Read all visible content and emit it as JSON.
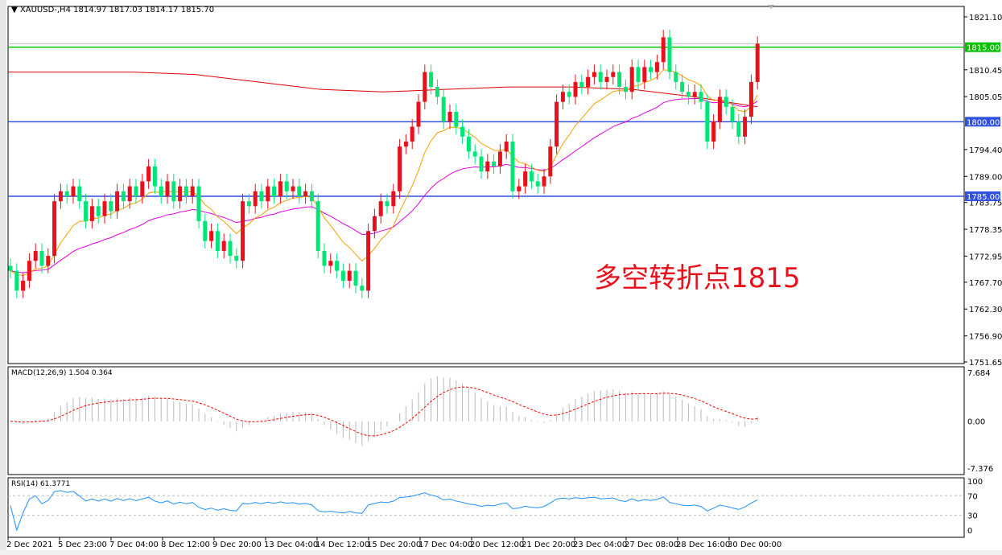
{
  "chart_data": {
    "type": "candlestick",
    "symbol_header": "XAUUSD-,H4",
    "ohlc_header": "1814.97 1817.03 1814.17 1815.70",
    "closes": [
      1770,
      1766,
      1768,
      1772,
      1774,
      1771,
      1773,
      1784,
      1786,
      1785,
      1787,
      1784,
      1780,
      1783,
      1781,
      1784,
      1782,
      1786,
      1784,
      1787,
      1785,
      1788,
      1791,
      1787,
      1785,
      1788,
      1784,
      1787,
      1785,
      1787,
      1780,
      1776,
      1778,
      1774,
      1776,
      1773,
      1772,
      1784,
      1783,
      1786,
      1784,
      1787,
      1785,
      1788,
      1786,
      1787,
      1785,
      1786,
      1784,
      1774,
      1771,
      1772,
      1770,
      1768,
      1770,
      1767,
      1766,
      1778,
      1781,
      1784,
      1783,
      1786,
      1795,
      1796,
      1799,
      1804,
      1810,
      1807,
      1805,
      1800,
      1802,
      1799,
      1797,
      1794,
      1793,
      1790,
      1792,
      1791,
      1794,
      1796,
      1786,
      1787,
      1790,
      1788,
      1787,
      1789,
      1795,
      1804,
      1806,
      1805,
      1808,
      1807,
      1809,
      1810,
      1808,
      1809,
      1810,
      1807,
      1806,
      1811,
      1808,
      1811,
      1810,
      1812,
      1817,
      1810,
      1808,
      1806,
      1805,
      1806,
      1804,
      1796,
      1800,
      1805,
      1803,
      1800,
      1797,
      1801,
      1808,
      1815.7
    ],
    "long_ma": [
      1810,
      1810,
      1810,
      1809.5,
      1808,
      1806.5,
      1806,
      1806.5,
      1807,
      1807,
      1806.5,
      1805,
      1803
    ],
    "price_axis_labels": [
      "1821.10",
      "1810.45",
      "1805.05",
      "1794.40",
      "1789.00",
      "1783.75",
      "1778.35",
      "1772.95",
      "1767.70",
      "1762.30",
      "1756.90",
      "1751.65"
    ],
    "current_price_label": "1815.00",
    "levels": [
      {
        "value": 1815.0,
        "label": "1815.00",
        "color": "#00c000"
      },
      {
        "value": 1800.0,
        "label": "1800.00",
        "color": "#3050e0"
      },
      {
        "value": 1785.0,
        "label": "1785.00",
        "color": "#3050e0"
      }
    ],
    "ylim": [
      1751.65,
      1821.1
    ],
    "time_labels": [
      "2 Dec 2021",
      "5 Dec 23:00",
      "7 Dec 04:00",
      "8 Dec 12:00",
      "9 Dec 20:00",
      "13 Dec 04:00",
      "14 Dec 12:00",
      "15 Dec 20:00",
      "17 Dec 04:00",
      "20 Dec 12:00",
      "21 Dec 20:00",
      "23 Dec 04:00",
      "27 Dec 08:00",
      "28 Dec 16:00",
      "30 Dec 00:00"
    ],
    "annotation": "多空转折点1815",
    "colors": {
      "up": "#e8101a",
      "down": "#00e676",
      "ma_fast": "#f5a000",
      "ma_mid": "#e000e0",
      "ma_long": "#e00000",
      "macd_signal": "#ff0000",
      "rsi": "#1e90ff"
    },
    "macd": {
      "label": "MACD(12,26,9) 1.504 0.364",
      "axis": [
        "7.684",
        "0.00",
        "-7.376"
      ],
      "ylim": [
        -7.376,
        7.684
      ]
    },
    "rsi": {
      "label": "RSI(14) 61.3771",
      "axis": [
        "100",
        "70",
        "30",
        "0"
      ],
      "levels": [
        70,
        30
      ]
    }
  }
}
